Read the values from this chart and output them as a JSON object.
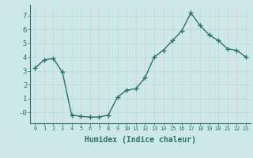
{
  "x": [
    0,
    1,
    2,
    3,
    4,
    5,
    6,
    7,
    8,
    9,
    10,
    11,
    12,
    13,
    14,
    15,
    16,
    17,
    18,
    19,
    20,
    21,
    22,
    23
  ],
  "y": [
    3.2,
    3.8,
    3.9,
    2.9,
    -0.2,
    -0.3,
    -0.35,
    -0.35,
    -0.2,
    1.1,
    1.6,
    1.7,
    2.5,
    4.0,
    4.5,
    5.2,
    5.9,
    7.2,
    6.3,
    5.6,
    5.2,
    4.6,
    4.5,
    4.0
  ],
  "xlabel": "Humidex (Indice chaleur)",
  "ylim": [
    -0.8,
    7.8
  ],
  "xlim": [
    -0.5,
    23.5
  ],
  "yticks": [
    0,
    1,
    2,
    3,
    4,
    5,
    6,
    7
  ],
  "ytick_labels": [
    "-0",
    "1",
    "2",
    "3",
    "4",
    "5",
    "6",
    "7"
  ],
  "xticks": [
    0,
    1,
    2,
    3,
    4,
    5,
    6,
    7,
    8,
    9,
    10,
    11,
    12,
    13,
    14,
    15,
    16,
    17,
    18,
    19,
    20,
    21,
    22,
    23
  ],
  "line_color": "#2e7070",
  "marker": "+",
  "bg_color": "#cce8e8",
  "plot_bg_color": "#cce8e8",
  "grid_color_v": "#e8c8c8",
  "grid_color_h": "#b8d8d8",
  "tick_color": "#2e7070",
  "label_color": "#2e7070"
}
